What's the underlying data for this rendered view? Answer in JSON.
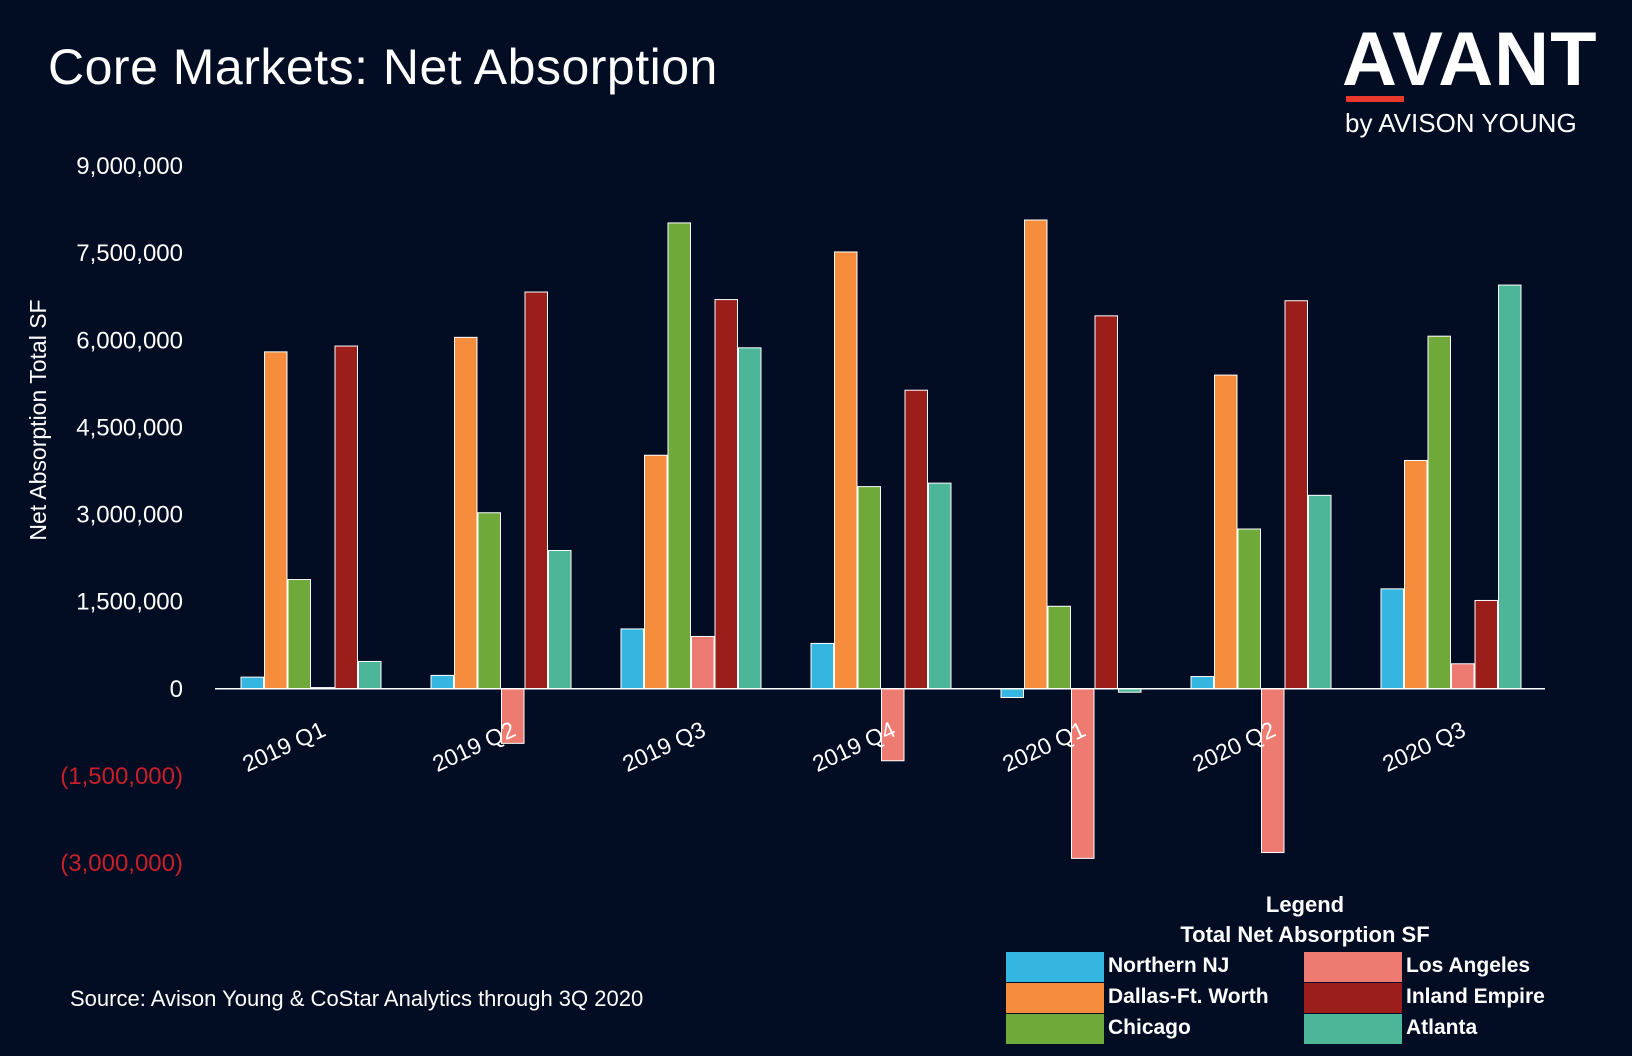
{
  "title": "Core Markets: Net Absorption",
  "logo": {
    "word": "AVANT",
    "sub": "by AVISON YOUNG",
    "accent_color": "#e8392c"
  },
  "source": "Source: Avison Young & CoStar Analytics through 3Q 2020",
  "legend": {
    "title": "Legend",
    "subtitle": "Total Net Absorption SF"
  },
  "colors": {
    "background": "#020c23",
    "negative_tick": "#c8202a"
  },
  "chart_data": {
    "type": "bar",
    "title": "Core Markets: Net Absorption",
    "ylabel": "Net Absorption Total SF",
    "xlabel": "",
    "categories": [
      "2019 Q1",
      "2019 Q2",
      "2019 Q3",
      "2019 Q4",
      "2020 Q1",
      "2020 Q2",
      "2020 Q3"
    ],
    "ylim": [
      -3000000,
      9000000
    ],
    "yticks": [
      9000000,
      7500000,
      6000000,
      4500000,
      3000000,
      1500000,
      0,
      -1500000,
      -3000000
    ],
    "ytick_labels": [
      "9,000,000",
      "7,500,000",
      "6,000,000",
      "4,500,000",
      "3,000,000",
      "1,500,000",
      "0",
      "(1,500,000)",
      "(3,000,000)"
    ],
    "legend_position": "bottom-right",
    "grid": false,
    "series": [
      {
        "name": "Northern NJ",
        "color": "#35b6e0",
        "values": [
          200000,
          230000,
          1030000,
          780000,
          -150000,
          210000,
          1720000
        ]
      },
      {
        "name": "Dallas-Ft. Worth",
        "color": "#f58d3c",
        "values": [
          5800000,
          6050000,
          4020000,
          7520000,
          8070000,
          5400000,
          3930000
        ]
      },
      {
        "name": "Chicago",
        "color": "#6fa93a",
        "values": [
          1880000,
          3030000,
          8020000,
          3480000,
          1420000,
          2750000,
          6070000
        ]
      },
      {
        "name": "Los Angeles",
        "color": "#ee7b72",
        "values": [
          20000,
          -940000,
          900000,
          -1240000,
          -2920000,
          -2820000,
          430000
        ]
      },
      {
        "name": "Inland Empire",
        "color": "#9b1e1a",
        "values": [
          5900000,
          6830000,
          6700000,
          5140000,
          6420000,
          6680000,
          1520000
        ]
      },
      {
        "name": "Atlanta",
        "color": "#4db598",
        "values": [
          470000,
          2380000,
          5870000,
          3540000,
          -60000,
          3330000,
          6950000
        ]
      }
    ]
  }
}
